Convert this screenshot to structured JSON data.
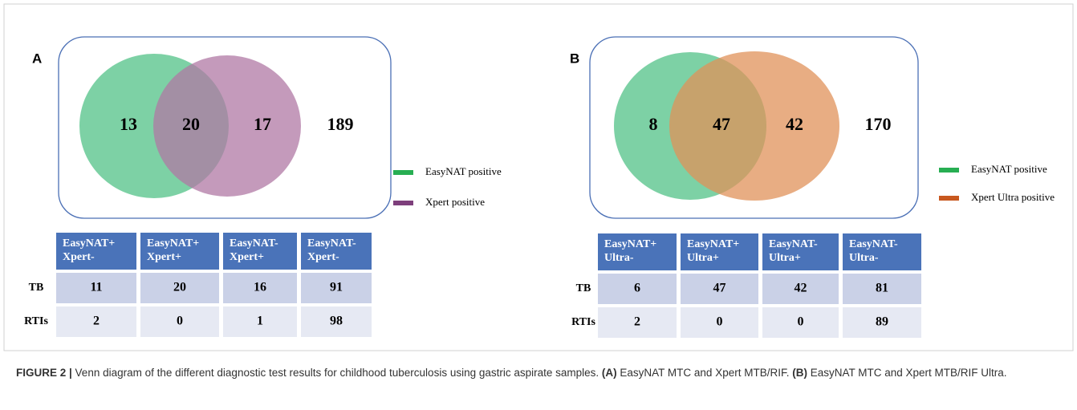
{
  "panels": [
    {
      "label": "A",
      "venn": {
        "regions": [
          13,
          20,
          17,
          189
        ]
      },
      "legend": [
        {
          "text": "EasyNAT positive",
          "color": "#27ae52"
        },
        {
          "text": "Xpert positive",
          "color": "#7e3f7c"
        }
      ],
      "circle_colors": [
        "#52c287",
        "#b078a4"
      ],
      "table": {
        "header": [
          [
            "EasyNAT+",
            "Xpert-"
          ],
          [
            "EasyNAT+",
            "Xpert+"
          ],
          [
            "EasyNAT-",
            "Xpert+"
          ],
          [
            "EasyNAT-",
            "Xpert-"
          ]
        ],
        "rows": [
          [
            "TB",
            11,
            20,
            16,
            91
          ],
          [
            "RTIs",
            2,
            0,
            1,
            98
          ]
        ]
      }
    },
    {
      "label": "B",
      "venn": {
        "regions": [
          8,
          47,
          42,
          170
        ]
      },
      "legend": [
        {
          "text": "EasyNAT positive",
          "color": "#27ae52"
        },
        {
          "text": "Xpert Ultra positive",
          "color": "#c8581f"
        }
      ],
      "circle_colors": [
        "#52c287",
        "#e0915a"
      ],
      "table": {
        "header": [
          [
            "EasyNAT+",
            "Ultra-"
          ],
          [
            "EasyNAT+",
            "Ultra+"
          ],
          [
            "EasyNAT-",
            "Ultra+"
          ],
          [
            "EasyNAT-",
            "Ultra-"
          ]
        ],
        "rows": [
          [
            "TB",
            6,
            47,
            42,
            81
          ],
          [
            "RTIs",
            2,
            0,
            0,
            89
          ]
        ]
      }
    }
  ],
  "caption": {
    "figure": "FIGURE 2 | ",
    "runs": [
      {
        "text": "Venn diagram of the different diagnostic test results for childhood tuberculosis using gastric aspirate samples. ",
        "bold": false
      },
      {
        "text": "(A)",
        "bold": true
      },
      {
        "text": " EasyNAT MTC and Xpert MTB/RIF. ",
        "bold": false
      },
      {
        "text": "(B)",
        "bold": true
      },
      {
        "text": " EasyNAT MTC and Xpert MTB/RIF Ultra.",
        "bold": false
      }
    ]
  }
}
